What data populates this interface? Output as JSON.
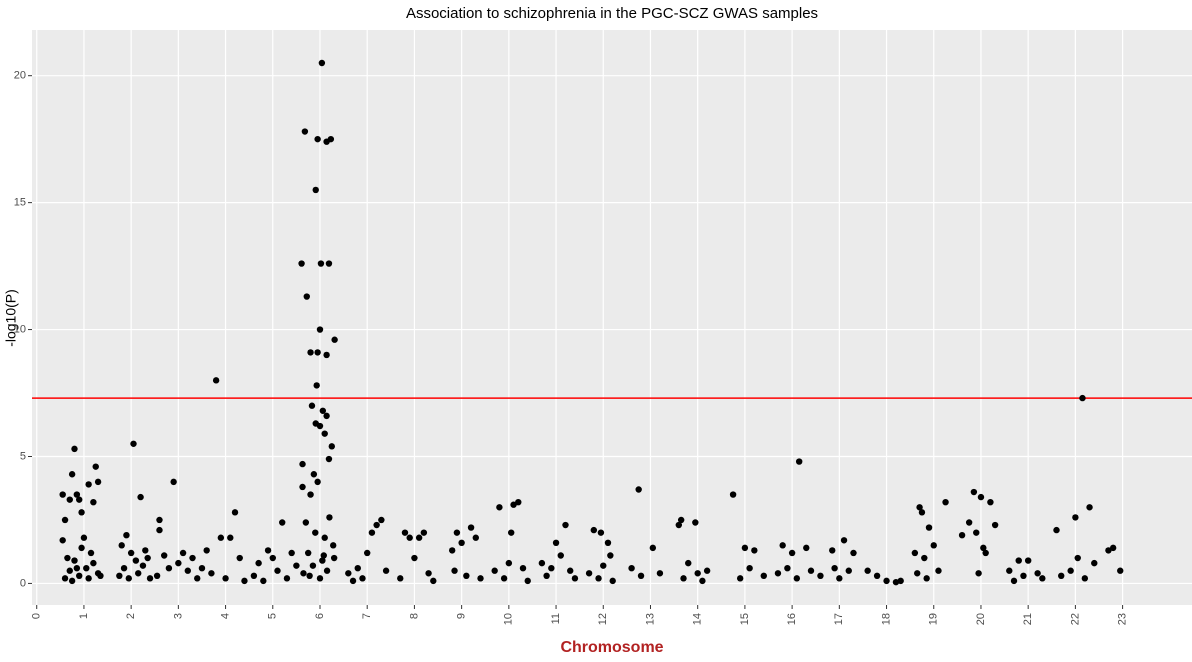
{
  "chart_data": {
    "type": "scatter",
    "title": "Association to schizophrenia in the PGC-SCZ GWAS samples",
    "xlabel": "Chromosome",
    "ylabel": "-log10(P)",
    "color": "#000000",
    "hline": {
      "value": 7.3,
      "color": "#ff0000"
    },
    "xlim": [
      -0.1,
      24.47
    ],
    "ylim": [
      -0.85,
      21.8
    ],
    "xticks": [
      0,
      1,
      2,
      3,
      4,
      5,
      6,
      7,
      8,
      9,
      10,
      11,
      12,
      13,
      14,
      15,
      16,
      17,
      18,
      19,
      20,
      21,
      22,
      23
    ],
    "yticks": [
      0,
      5,
      10,
      15,
      20
    ],
    "grid": true,
    "x": [
      0.55,
      0.6,
      0.55,
      0.7,
      0.75,
      0.8,
      0.85,
      0.9,
      0.95,
      1.1,
      1.2,
      1.25,
      1.3,
      0.6,
      0.7,
      0.8,
      0.9,
      1.0,
      1.05,
      1.1,
      1.2,
      1.3,
      0.65,
      0.75,
      0.95,
      1.15,
      1.35,
      0.85,
      1.8,
      1.9,
      2.0,
      2.05,
      2.2,
      2.3,
      1.75,
      1.85,
      1.95,
      2.1,
      2.15,
      2.25,
      2.35,
      2.4,
      2.6,
      2.6,
      2.9,
      2.7,
      3.0,
      3.1,
      3.2,
      2.55,
      2.8,
      3.3,
      3.4,
      3.8,
      4.2,
      3.6,
      3.9,
      4.1,
      3.7,
      4.0,
      4.3,
      4.4,
      3.5,
      5.2,
      4.7,
      4.9,
      5.0,
      5.4,
      4.6,
      4.8,
      5.1,
      5.3,
      5.5,
      5.68,
      5.95,
      6.14,
      6.23,
      6.04,
      5.91,
      5.61,
      6.02,
      6.19,
      5.72,
      6.0,
      5.8,
      5.95,
      6.14,
      6.31,
      5.93,
      5.83,
      6.06,
      6.14,
      5.91,
      6.0,
      6.1,
      6.25,
      5.63,
      6.19,
      5.87,
      5.95,
      5.63,
      5.8,
      5.7,
      5.9,
      6.1,
      6.2,
      5.75,
      6.05,
      6.28,
      5.65,
      5.85,
      6.0,
      6.15,
      6.3,
      5.78,
      6.08,
      7.2,
      7.3,
      7.0,
      7.1,
      6.6,
      6.8,
      6.9,
      7.4,
      6.7,
      7.8,
      7.9,
      8.1,
      8.2,
      8.0,
      7.7,
      8.3,
      8.4,
      8.8,
      8.9,
      9.0,
      9.2,
      9.3,
      8.85,
      9.1,
      9.4,
      9.8,
      10.1,
      10.2,
      10.05,
      9.7,
      9.9,
      10.0,
      10.3,
      10.4,
      11.2,
      11.0,
      10.7,
      10.8,
      11.1,
      11.3,
      11.4,
      10.9,
      11.8,
      11.95,
      12.1,
      12.15,
      11.7,
      11.9,
      12.0,
      12.2,
      12.75,
      13.05,
      12.6,
      12.8,
      13.2,
      13.6,
      13.65,
      13.95,
      13.8,
      13.7,
      14.0,
      14.1,
      14.2,
      14.75,
      15.0,
      15.2,
      14.9,
      15.1,
      15.4,
      16.15,
      15.8,
      16.0,
      16.3,
      15.7,
      15.9,
      16.1,
      16.4,
      17.1,
      17.3,
      16.85,
      16.6,
      16.9,
      17.0,
      17.2,
      17.6,
      17.8,
      18.0,
      18.2,
      18.3,
      18.7,
      18.75,
      18.9,
      18.6,
      18.8,
      19.0,
      18.65,
      18.85,
      19.1,
      19.25,
      19.85,
      19.9,
      20.0,
      20.2,
      19.75,
      20.05,
      20.3,
      19.6,
      19.95,
      20.1,
      20.6,
      20.8,
      21.0,
      21.2,
      20.7,
      20.9,
      21.3,
      22.15,
      22.3,
      22.0,
      21.6,
      22.05,
      21.7,
      21.9,
      22.4,
      22.2,
      22.7,
      22.8,
      22.95
    ],
    "y": [
      3.5,
      2.5,
      1.7,
      3.3,
      4.3,
      5.3,
      3.5,
      3.3,
      2.8,
      3.9,
      3.2,
      4.6,
      4.0,
      0.2,
      0.5,
      0.9,
      0.3,
      1.8,
      0.6,
      0.2,
      0.8,
      0.4,
      1.0,
      0.1,
      1.4,
      1.2,
      0.3,
      0.6,
      1.5,
      1.9,
      1.2,
      5.5,
      3.4,
      1.3,
      0.3,
      0.6,
      0.2,
      0.9,
      0.4,
      0.7,
      1.0,
      0.2,
      2.5,
      2.1,
      4.0,
      1.1,
      0.8,
      1.2,
      0.5,
      0.3,
      0.6,
      1.0,
      0.2,
      8.0,
      2.8,
      1.3,
      1.8,
      1.8,
      0.4,
      0.2,
      1.0,
      0.1,
      0.6,
      2.4,
      0.8,
      1.3,
      1.0,
      1.2,
      0.3,
      0.1,
      0.5,
      0.2,
      0.7,
      17.8,
      17.5,
      17.4,
      17.5,
      20.5,
      15.5,
      12.6,
      12.6,
      12.6,
      11.3,
      10.0,
      9.1,
      9.1,
      9.0,
      9.6,
      7.8,
      7.0,
      6.8,
      6.6,
      6.3,
      6.2,
      5.9,
      5.4,
      4.7,
      4.9,
      4.3,
      4.0,
      3.8,
      3.5,
      2.4,
      2.0,
      1.8,
      2.6,
      1.2,
      0.9,
      1.5,
      0.4,
      0.7,
      0.2,
      0.5,
      1.0,
      0.3,
      1.1,
      2.3,
      2.5,
      1.2,
      2.0,
      0.4,
      0.6,
      0.2,
      0.5,
      0.1,
      2.0,
      1.8,
      1.8,
      2.0,
      1.0,
      0.2,
      0.4,
      0.1,
      1.3,
      2.0,
      1.6,
      2.2,
      1.8,
      0.5,
      0.3,
      0.2,
      3.0,
      3.1,
      3.2,
      2.0,
      0.5,
      0.2,
      0.8,
      0.6,
      0.1,
      2.3,
      1.6,
      0.8,
      0.3,
      1.1,
      0.5,
      0.2,
      0.6,
      2.1,
      2.0,
      1.6,
      1.1,
      0.4,
      0.2,
      0.7,
      0.1,
      3.7,
      1.4,
      0.6,
      0.3,
      0.4,
      2.3,
      2.5,
      2.4,
      0.8,
      0.2,
      0.4,
      0.1,
      0.5,
      3.5,
      1.4,
      1.3,
      0.2,
      0.6,
      0.3,
      4.8,
      1.5,
      1.2,
      1.4,
      0.4,
      0.6,
      0.2,
      0.5,
      1.7,
      1.2,
      1.3,
      0.3,
      0.6,
      0.2,
      0.5,
      0.5,
      0.3,
      0.1,
      0.05,
      0.1,
      3.0,
      2.8,
      2.2,
      1.2,
      1.0,
      1.5,
      0.4,
      0.2,
      0.5,
      3.2,
      3.6,
      2.0,
      3.4,
      3.2,
      2.4,
      1.4,
      2.3,
      1.9,
      0.4,
      1.2,
      0.5,
      0.9,
      0.9,
      0.4,
      0.1,
      0.3,
      0.2,
      7.3,
      3.0,
      2.6,
      2.1,
      1.0,
      0.3,
      0.5,
      0.8,
      0.2,
      1.3,
      1.4,
      0.5
    ]
  }
}
